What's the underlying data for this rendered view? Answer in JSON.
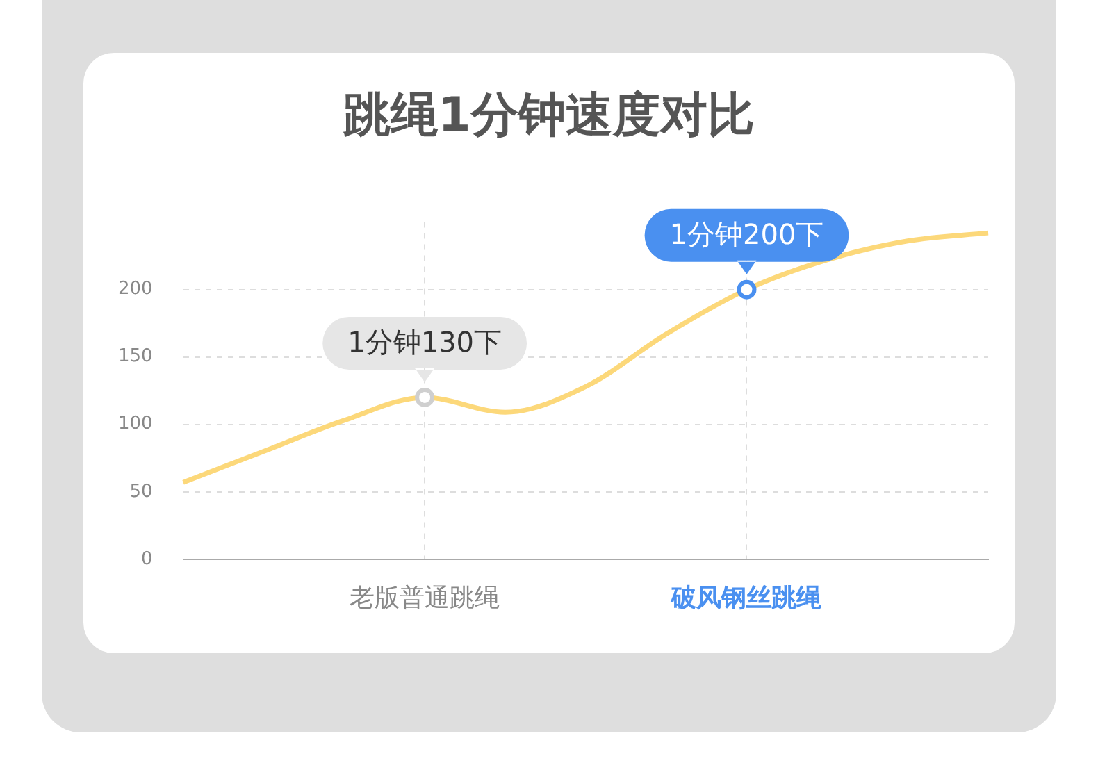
{
  "chart_data": {
    "type": "line",
    "title": "跳绳1分钟速度对比",
    "categories": [
      null,
      null,
      null,
      "老版普通跳绳",
      null,
      null,
      null,
      "破风钢丝跳绳",
      null,
      null,
      null
    ],
    "series": [
      {
        "color": "#fcd87a",
        "marker": "none",
        "values": [
          57,
          80,
          103,
          120,
          109,
          128,
          167,
          200,
          222,
          236,
          242
        ]
      },
      {
        "type": "scatter",
        "marker": "circle",
        "colors": [
          null,
          null,
          null,
          "#cfcfcf",
          null,
          null,
          null,
          "#4a90f0",
          null,
          null,
          null
        ],
        "values": [
          null,
          null,
          null,
          120,
          null,
          null,
          null,
          200,
          null,
          null,
          null
        ]
      }
    ],
    "ylim": [
      0,
      250
    ],
    "yticks": [
      0,
      50,
      100,
      150,
      200
    ],
    "grid": true,
    "legend": false,
    "annotations": [
      {
        "text": "1分钟130下",
        "x": "老版普通跳绳",
        "y": 120
      },
      {
        "text": "1分钟200下",
        "x": "破风钢丝跳绳",
        "y": 200
      }
    ]
  }
}
